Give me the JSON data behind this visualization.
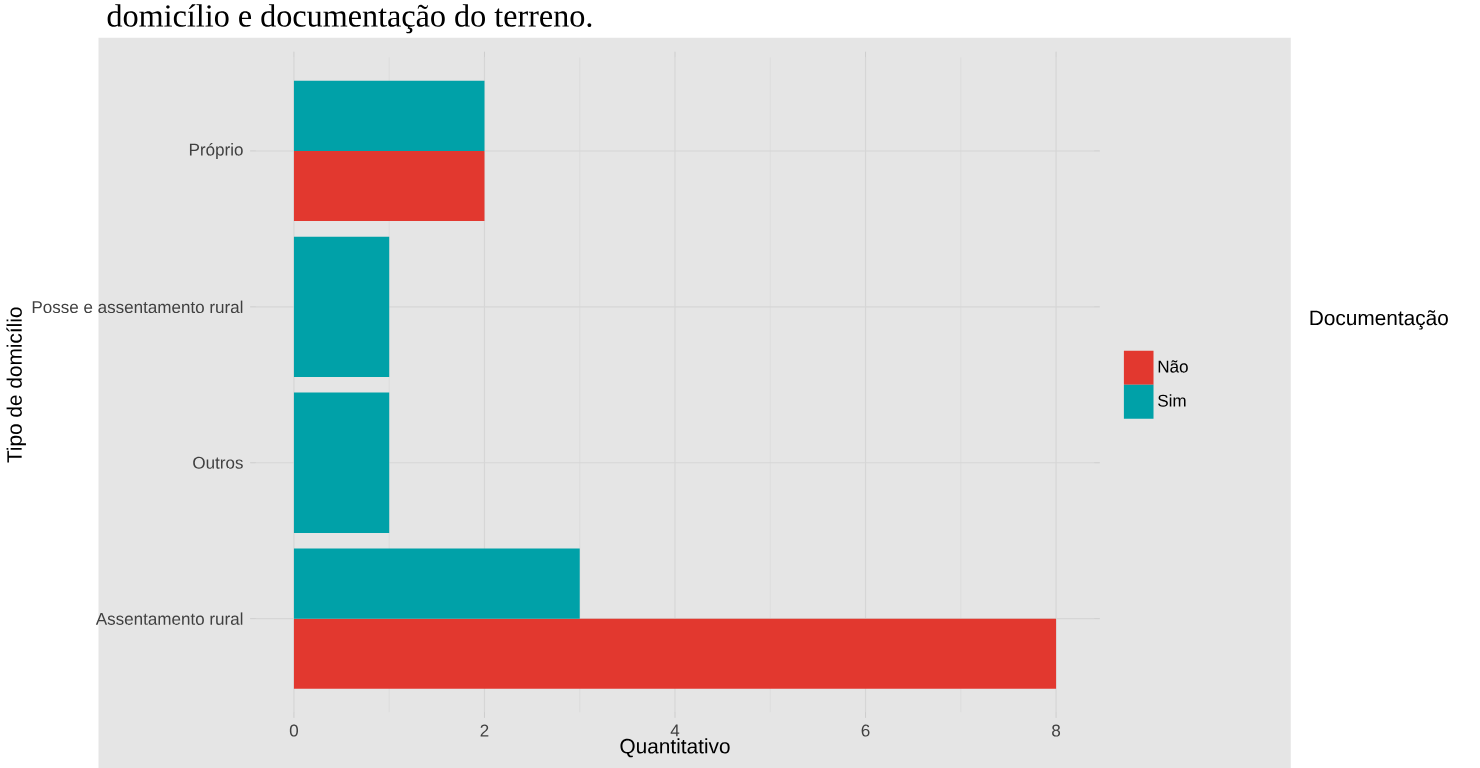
{
  "chart_data": {
    "type": "bar",
    "orientation": "horizontal",
    "annotations": [
      "domicílio e documentação do terreno."
    ],
    "xlabel": "Quantitativo",
    "ylabel": "Tipo de domicílio",
    "legend_title": "Documentação",
    "categories": [
      "Próprio",
      "Posse e assentamento rural",
      "Outros",
      "Assentamento rural"
    ],
    "series": [
      {
        "name": "Não",
        "color": "#e2382f",
        "values": [
          2,
          null,
          null,
          8
        ]
      },
      {
        "name": "Sim",
        "color": "#00a1a8",
        "values": [
          2,
          1,
          1,
          3
        ]
      }
    ],
    "xlim": [
      -0.4,
      8.4
    ],
    "xticks": [
      0,
      2,
      4,
      6,
      8
    ],
    "grid": true,
    "legend": "right"
  }
}
